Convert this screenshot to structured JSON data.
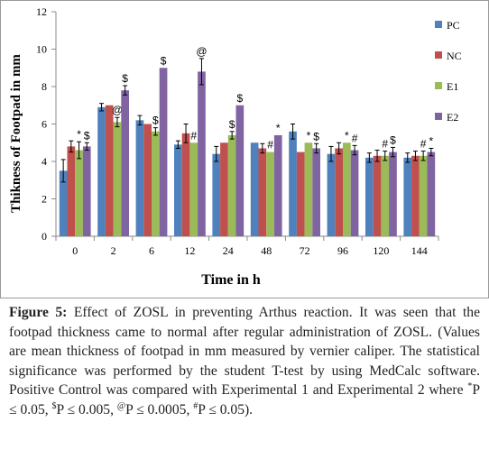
{
  "chart_data": {
    "type": "bar",
    "ylabel": "Thikness of Footpad in mm",
    "xlabel": "Time in h",
    "ylim": [
      0,
      12
    ],
    "yticks": [
      0,
      2,
      4,
      6,
      8,
      10,
      12
    ],
    "categories": [
      "0",
      "2",
      "6",
      "12",
      "24",
      "48",
      "72",
      "96",
      "120",
      "144"
    ],
    "grid": false,
    "legend_position": "right",
    "series": [
      {
        "name": "PC",
        "color": "#4f81bd",
        "values": [
          3.5,
          6.9,
          6.2,
          4.9,
          4.4,
          5.0,
          5.6,
          4.4,
          4.2,
          4.2
        ],
        "errors": [
          0.6,
          0.2,
          0.25,
          0.2,
          0.4,
          0.0,
          0.4,
          0.4,
          0.25,
          0.25
        ],
        "annotations": [
          "",
          "",
          "",
          "",
          "",
          "",
          "",
          "",
          "",
          ""
        ]
      },
      {
        "name": "NC",
        "color": "#c0504d",
        "values": [
          4.8,
          7.0,
          6.0,
          5.5,
          5.0,
          4.7,
          4.5,
          4.7,
          4.3,
          4.3
        ],
        "errors": [
          0.3,
          0.0,
          0.0,
          0.5,
          0.0,
          0.25,
          0.0,
          0.3,
          0.3,
          0.25
        ],
        "annotations": [
          "",
          "",
          "",
          "",
          "",
          "",
          "",
          "",
          "",
          ""
        ]
      },
      {
        "name": "E1",
        "color": "#9bbb59",
        "values": [
          4.6,
          6.1,
          5.6,
          5.0,
          5.4,
          4.5,
          5.0,
          5.0,
          4.3,
          4.3
        ],
        "errors": [
          0.45,
          0.25,
          0.2,
          0.0,
          0.2,
          0.0,
          0.0,
          0.0,
          0.25,
          0.25
        ],
        "annotations": [
          "*",
          "@",
          "$",
          "#",
          "$",
          "#",
          "*",
          "*",
          "#",
          "#"
        ]
      },
      {
        "name": "E2",
        "color": "#8064a2",
        "values": [
          4.8,
          7.8,
          9.0,
          8.8,
          7.0,
          5.4,
          4.7,
          4.6,
          4.5,
          4.5
        ],
        "errors": [
          0.2,
          0.25,
          0.0,
          0.7,
          0.0,
          0.0,
          0.25,
          0.25,
          0.25,
          0.2
        ],
        "annotations": [
          "$",
          "$",
          "$",
          "@",
          "$",
          "*",
          "$",
          "#",
          "$",
          "*"
        ]
      }
    ]
  },
  "caption": {
    "label": "Figure 5:",
    "text_1": " Effect of ZOSL in preventing Arthus reaction. It was seen that the footpad thickness came to normal after regular administration of ZOSL. (Values are mean thickness of footpad in mm measured by vernier caliper. The statistical significance was performed by the student T-test by using MedCalc software. Positive Control was compared with Experimental 1 and Experimental 2 where ",
    "sup_1": "*",
    "text_2": "P ≤ 0.05, ",
    "sup_2": "$",
    "text_3": "P ≤ 0.005, ",
    "sup_3": "@",
    "text_4": "P ≤ 0.0005, ",
    "sup_4": "#",
    "text_5": "P ≤ 0.05)."
  }
}
